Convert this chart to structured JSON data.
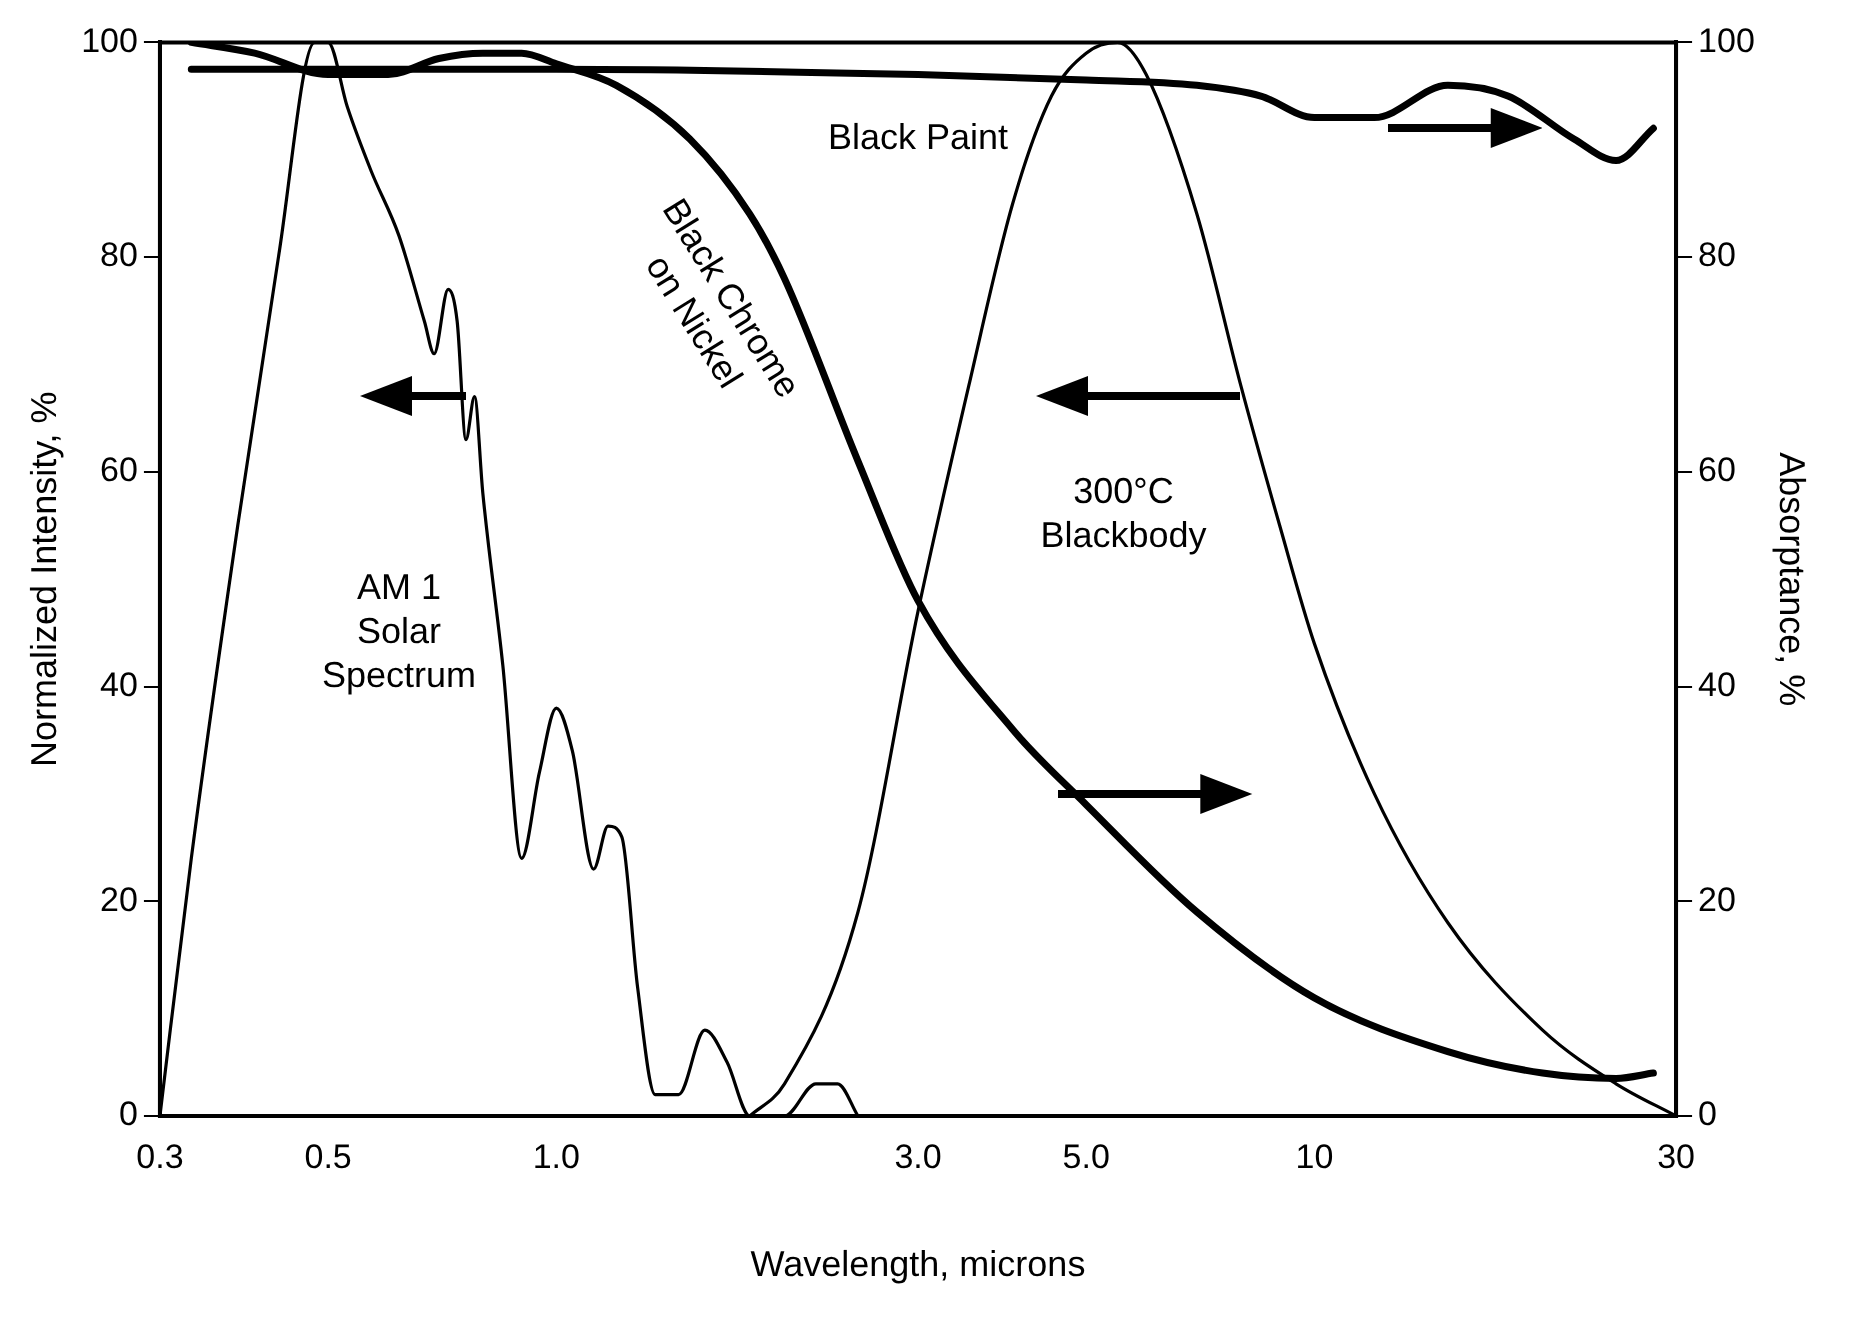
{
  "chart_data": {
    "type": "line",
    "xlabel": "Wavelength, microns",
    "ylabel": "Normalized Intensity, %",
    "y2label": "Absorptance, %",
    "log": "x",
    "xlim": [
      0.3,
      30
    ],
    "xticks": [
      0.3,
      0.5,
      {
        "value": 1,
        "label": "1.0"
      },
      {
        "value": 3,
        "label": "3.0"
      },
      {
        "value": 5,
        "label": "5.0"
      },
      10,
      30
    ],
    "ylim": [
      0,
      100
    ],
    "yticks": [
      0,
      20,
      40,
      60,
      80,
      100
    ],
    "y2lim": [
      0,
      100
    ],
    "y2ticks": [
      0,
      20,
      40,
      60,
      80,
      100
    ],
    "grid": false,
    "legend": false,
    "marker": "none",
    "line_style": "solid",
    "series": [
      {
        "color": "#000000",
        "axis": "y",
        "x": [
          0.3,
          0.33,
          0.38,
          0.43,
          0.48,
          0.5,
          0.53,
          0.57,
          0.62,
          0.67,
          0.69,
          0.72,
          0.74,
          0.76,
          0.78,
          0.8,
          0.85,
          0.9,
          0.95,
          1.0,
          1.05,
          1.12,
          1.17,
          1.22,
          1.28,
          1.35,
          1.45,
          1.57,
          1.68,
          1.8,
          2.0,
          2.2,
          2.35,
          2.5
        ],
        "values": [
          0,
          24,
          55,
          80,
          100,
          100,
          94,
          88,
          82,
          74,
          71,
          77,
          74,
          63,
          67,
          58,
          42,
          24,
          32,
          38,
          34,
          23,
          27,
          26,
          12,
          2,
          2,
          8,
          5,
          0,
          0,
          3,
          3,
          0
        ]
      },
      {
        "color": "#000000",
        "axis": "y",
        "x": [
          1.8,
          2.0,
          2.5,
          3.0,
          3.5,
          4.0,
          4.5,
          5.0,
          5.5,
          6.0,
          7.0,
          8.0,
          9.0,
          10,
          12,
          15,
          20,
          25,
          30
        ],
        "values": [
          0,
          3,
          19,
          47,
          68,
          85,
          95,
          99,
          100,
          97,
          84,
          68,
          55,
          44,
          30,
          18,
          8,
          3,
          0
        ]
      },
      {
        "color": "#000000",
        "axis": "y2",
        "x": [
          0.33,
          0.4,
          0.5,
          0.6,
          0.7,
          0.8,
          0.9,
          1.0,
          1.2,
          1.5,
          1.8,
          2.0,
          2.5,
          3.0,
          4.0,
          5.0,
          7.0,
          10,
          15,
          20,
          25,
          28
        ],
        "values": [
          100,
          99,
          97,
          97,
          98.5,
          99,
          99,
          98,
          96,
          91,
          84,
          78,
          61,
          48,
          36,
          29,
          19,
          11,
          6,
          4,
          3.5,
          4
        ]
      },
      {
        "color": "#000000",
        "axis": "y2",
        "x": [
          0.33,
          1.0,
          3.0,
          5.0,
          7.0,
          8.5,
          10,
          12,
          15,
          18,
          22,
          25,
          28
        ],
        "values": [
          97.5,
          97.5,
          97,
          96.5,
          96,
          95,
          93,
          93,
          96,
          95,
          91,
          89,
          92
        ]
      }
    ],
    "annotations": [
      "AM 1\nSolar\nSpectrum",
      "300°C\nBlackbody",
      "Black Chrome\non Nickel",
      "Black Paint"
    ]
  }
}
